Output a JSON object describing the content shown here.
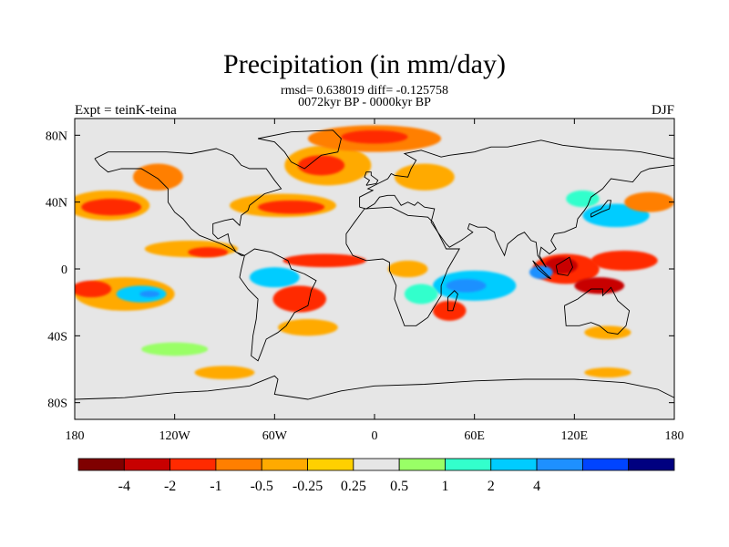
{
  "title": "Precipitation (in mm/day)",
  "stats": "rmsd= 0.638019 diff= -0.125758",
  "period": "0072kyr BP - 0000kyr BP",
  "experiment": "Expt = teinK-teina",
  "season": "DJF",
  "map": {
    "projection": "cylindrical-equidistant",
    "lon_range": [
      -180,
      180
    ],
    "lat_range": [
      -90,
      90
    ],
    "background_color": "#e6e6e6",
    "lat_ticks": [
      {
        "value": 80,
        "label": "80N"
      },
      {
        "value": 40,
        "label": "40N"
      },
      {
        "value": 0,
        "label": "0"
      },
      {
        "value": -40,
        "label": "40S"
      },
      {
        "value": -80,
        "label": "80S"
      }
    ],
    "lon_ticks": [
      {
        "value": -180,
        "label": "180"
      },
      {
        "value": -120,
        "label": "120W"
      },
      {
        "value": -60,
        "label": "60W"
      },
      {
        "value": 0,
        "label": "0"
      },
      {
        "value": 60,
        "label": "60E"
      },
      {
        "value": 120,
        "label": "120E"
      },
      {
        "value": 180,
        "label": "180"
      }
    ]
  },
  "colorbar": {
    "colors": [
      "#7f0000",
      "#c80000",
      "#ff2a00",
      "#ff7f00",
      "#ffaa00",
      "#ffd000",
      "#e6e6e6",
      "#99ff66",
      "#33ffcc",
      "#00ccff",
      "#1e90ff",
      "#0044ff",
      "#000080"
    ],
    "labels": [
      "-4",
      "-2",
      "-1",
      "-0.5",
      "-0.25",
      "0.25",
      "0.5",
      "1",
      "2",
      "4"
    ]
  },
  "anomaly_regions": [
    {
      "name": "subpolar-north-atlantic",
      "lon": -28,
      "lat": 62,
      "rlon": 26,
      "rlat": 12,
      "color": "#ffaa00"
    },
    {
      "name": "north-atlantic-core",
      "lon": -32,
      "lat": 62,
      "rlon": 14,
      "rlat": 6,
      "color": "#ff2a00"
    },
    {
      "name": "arctic-north",
      "lon": 0,
      "lat": 78,
      "rlon": 40,
      "rlat": 8,
      "color": "#ff7f00"
    },
    {
      "name": "arctic-north-core",
      "lon": 0,
      "lat": 79,
      "rlon": 20,
      "rlat": 4,
      "color": "#ff2a00"
    },
    {
      "name": "north-pacific-storm",
      "lon": -160,
      "lat": 38,
      "rlon": 25,
      "rlat": 9,
      "color": "#ffaa00"
    },
    {
      "name": "north-pacific-storm-core",
      "lon": -158,
      "lat": 37,
      "rlon": 18,
      "rlat": 5,
      "color": "#ff2a00"
    },
    {
      "name": "mid-atlantic-storm",
      "lon": -55,
      "lat": 38,
      "rlon": 32,
      "rlat": 7,
      "color": "#ffaa00"
    },
    {
      "name": "mid-atlantic-storm-core",
      "lon": -50,
      "lat": 37,
      "rlon": 20,
      "rlat": 4,
      "color": "#ff2a00"
    },
    {
      "name": "northeast-pacific",
      "lon": -130,
      "lat": 55,
      "rlon": 15,
      "rlat": 8,
      "color": "#ff7f00"
    },
    {
      "name": "europe-north",
      "lon": 30,
      "lat": 55,
      "rlon": 18,
      "rlat": 8,
      "color": "#ffaa00"
    },
    {
      "name": "west-pacific-wet",
      "lon": 145,
      "lat": 32,
      "rlon": 20,
      "rlat": 7,
      "color": "#00ccff"
    },
    {
      "name": "east-asia-wet",
      "lon": 125,
      "lat": 42,
      "rlon": 10,
      "rlat": 5,
      "color": "#33ffcc"
    },
    {
      "name": "north-pacific-dry",
      "lon": 165,
      "lat": 40,
      "rlon": 15,
      "rlat": 6,
      "color": "#ff7f00"
    },
    {
      "name": "itcz-east-pacific",
      "lon": -110,
      "lat": 12,
      "rlon": 28,
      "rlat": 5,
      "color": "#ffaa00"
    },
    {
      "name": "itcz-east-pacific-core",
      "lon": -100,
      "lat": 10,
      "rlon": 12,
      "rlat": 3,
      "color": "#ff2a00"
    },
    {
      "name": "itcz-atlantic",
      "lon": -30,
      "lat": 5,
      "rlon": 25,
      "rlat": 4,
      "color": "#ff2a00"
    },
    {
      "name": "africa-equatorial",
      "lon": 20,
      "lat": 0,
      "rlon": 12,
      "rlat": 5,
      "color": "#ffaa00"
    },
    {
      "name": "south-pacific-dry",
      "lon": -150,
      "lat": -15,
      "rlon": 30,
      "rlat": 10,
      "color": "#ffaa00"
    },
    {
      "name": "south-pacific-dry-core",
      "lon": -170,
      "lat": -12,
      "rlon": 12,
      "rlat": 5,
      "color": "#ff2a00"
    },
    {
      "name": "south-pacific-wet",
      "lon": -140,
      "lat": -15,
      "rlon": 15,
      "rlat": 5,
      "color": "#00ccff"
    },
    {
      "name": "south-pacific-wet-core",
      "lon": -135,
      "lat": -15,
      "rlon": 6,
      "rlat": 2,
      "color": "#1e90ff"
    },
    {
      "name": "amazon-wet",
      "lon": -60,
      "lat": -5,
      "rlon": 15,
      "rlat": 6,
      "color": "#00ccff"
    },
    {
      "name": "brazil-dry",
      "lon": -45,
      "lat": -18,
      "rlon": 16,
      "rlat": 8,
      "color": "#ff2a00"
    },
    {
      "name": "south-atlantic-dry",
      "lon": -40,
      "lat": -35,
      "rlon": 18,
      "rlat": 5,
      "color": "#ffaa00"
    },
    {
      "name": "indian-ocean-wet",
      "lon": 60,
      "lat": -10,
      "rlon": 25,
      "rlat": 9,
      "color": "#00ccff"
    },
    {
      "name": "indian-ocean-wet-core",
      "lon": 55,
      "lat": -10,
      "rlon": 12,
      "rlat": 4,
      "color": "#1e90ff"
    },
    {
      "name": "southern-africa-wet",
      "lon": 28,
      "lat": -15,
      "rlon": 10,
      "rlat": 6,
      "color": "#33ffcc"
    },
    {
      "name": "madagascar-dry",
      "lon": 45,
      "lat": -25,
      "rlon": 10,
      "rlat": 6,
      "color": "#ff2a00"
    },
    {
      "name": "maritime-continent-dry",
      "lon": 115,
      "lat": 0,
      "rlon": 20,
      "rlat": 9,
      "color": "#ff2a00"
    },
    {
      "name": "maritime-continent-core",
      "lon": 112,
      "lat": 2,
      "rlon": 10,
      "rlat": 5,
      "color": "#c80000"
    },
    {
      "name": "maritime-continent-wet",
      "lon": 100,
      "lat": -2,
      "rlon": 7,
      "rlat": 4,
      "color": "#1e90ff"
    },
    {
      "name": "west-pacific-dry",
      "lon": 150,
      "lat": 5,
      "rlon": 20,
      "rlat": 6,
      "color": "#ff2a00"
    },
    {
      "name": "north-australia-dry",
      "lon": 135,
      "lat": -10,
      "rlon": 15,
      "rlat": 5,
      "color": "#c80000"
    },
    {
      "name": "australia-south-dry",
      "lon": 140,
      "lat": -38,
      "rlon": 14,
      "rlat": 4,
      "color": "#ffaa00"
    },
    {
      "name": "southern-ocean-wet",
      "lon": -120,
      "lat": -48,
      "rlon": 20,
      "rlat": 4,
      "color": "#99ff66"
    },
    {
      "name": "southern-ocean-dry",
      "lon": -90,
      "lat": -62,
      "rlon": 18,
      "rlat": 4,
      "color": "#ffaa00"
    },
    {
      "name": "antarctic-margin",
      "lon": 140,
      "lat": -62,
      "rlon": 14,
      "rlat": 3,
      "color": "#ffaa00"
    }
  ]
}
